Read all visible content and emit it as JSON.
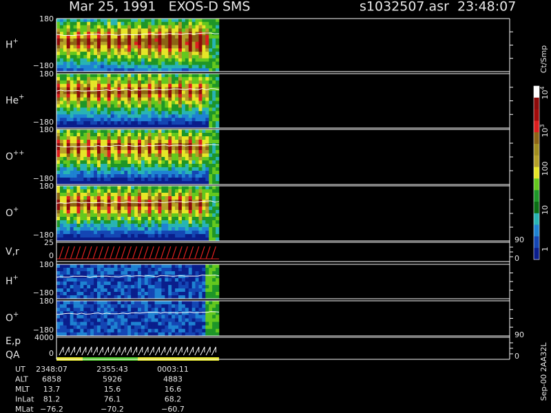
{
  "header": {
    "title": "Mar 25, 1991   EXOS-D SMS",
    "file": "s1032507.asr  23:48:07"
  },
  "panels": [
    {
      "label": "H",
      "sup": "+",
      "top": "180",
      "bottom": "−180"
    },
    {
      "label": "He",
      "sup": "+",
      "top": "180",
      "bottom": "−180"
    },
    {
      "label": "O",
      "sup": "++",
      "top": "180",
      "bottom": "−180"
    },
    {
      "label": "O",
      "sup": "+",
      "top": "180",
      "bottom": "−180"
    },
    {
      "label": "V,r",
      "top": "25",
      "bottom": "0",
      "right_top": "90",
      "right_bottom": "0"
    },
    {
      "label": "H",
      "sup": "+",
      "top": "180",
      "bottom": "−180"
    },
    {
      "label": "O",
      "sup": "+",
      "top": "180",
      "bottom": "−180"
    },
    {
      "label": "E,p",
      "label2": "QA",
      "top": "4000",
      "bottom": "0",
      "right_top": "90",
      "right_bottom": "0"
    }
  ],
  "colorbar": {
    "unit": "Ct/Smp",
    "labels": [
      {
        "base": "10",
        "exp": "4"
      },
      {
        "base": "10",
        "exp": "3"
      },
      {
        "base": "100"
      },
      {
        "base": "10"
      },
      {
        "base": "1"
      }
    ]
  },
  "ephemeris": {
    "rows": [
      [
        "UT",
        "2348:07",
        "2355:43",
        "0003:11"
      ],
      [
        "ALT",
        "6858",
        "5926",
        "4883"
      ],
      [
        "MLT",
        "13.7",
        "15.6",
        "16.6"
      ],
      [
        "InLat",
        "81.2",
        "76.1",
        "68.2"
      ],
      [
        "MLat",
        "−76.2",
        "−70.2",
        "−60.7"
      ]
    ]
  },
  "footer": "Sep-00  2AA32L"
}
